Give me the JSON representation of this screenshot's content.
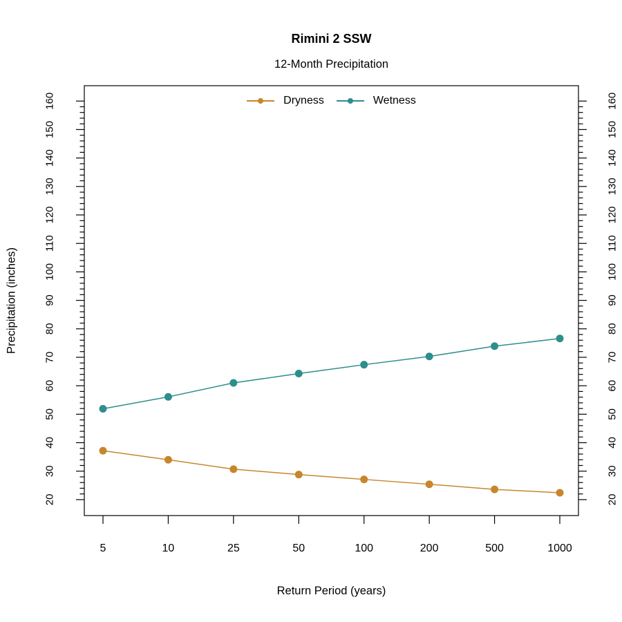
{
  "chart_data": {
    "type": "line",
    "title": "Rimini 2 SSW",
    "subtitle": "12-Month Precipitation",
    "xlabel": "Return Period (years)",
    "ylabel": "Precipitation (inches)",
    "categories": [
      "5",
      "10",
      "25",
      "50",
      "100",
      "200",
      "500",
      "1000"
    ],
    "series": [
      {
        "name": "Dryness",
        "color": "#C7862B",
        "values": [
          37.2,
          34.0,
          30.7,
          28.8,
          27.1,
          25.4,
          23.6,
          22.4
        ]
      },
      {
        "name": "Wetness",
        "color": "#2E8E8C",
        "values": [
          51.9,
          56.1,
          61.0,
          64.3,
          67.4,
          70.3,
          73.9,
          76.6
        ]
      }
    ],
    "ylim": [
      14.4,
      165.4
    ],
    "yticks": {
      "major_start": 20,
      "major_end": 160,
      "major_step": 10,
      "minor_step": 2
    },
    "axis_color": "#000000",
    "grid": false,
    "legend_position": "top-center",
    "y_axis_sides": "left-and-right"
  }
}
